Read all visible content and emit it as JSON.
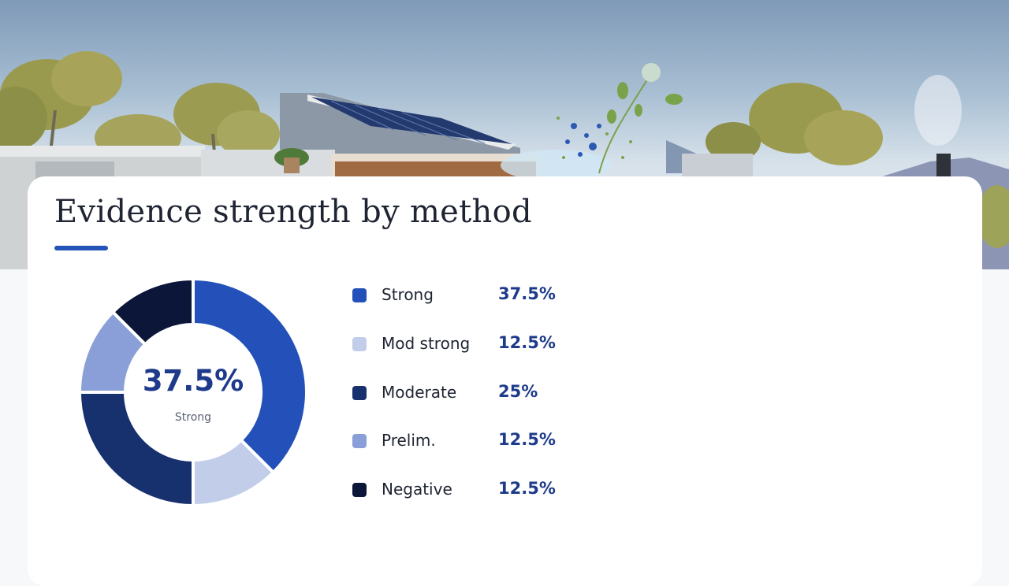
{
  "title": "Evidence strength by method",
  "colors": {
    "accent": "#2554b8",
    "value_text": "#1e3a8a"
  },
  "center": {
    "value": "37.5%",
    "label": "Strong"
  },
  "chart_data": {
    "type": "pie",
    "title": "Evidence strength by method",
    "donut": true,
    "categories": [
      "Strong",
      "Mod strong",
      "Moderate",
      "Prelim.",
      "Negative"
    ],
    "values": [
      37.5,
      12.5,
      25,
      12.5,
      12.5
    ],
    "value_labels": [
      "37.5%",
      "12.5%",
      "25%",
      "12.5%",
      "12.5%"
    ],
    "colors": [
      "#2350b9",
      "#c2cde9",
      "#17316e",
      "#8a9fd8",
      "#0c1638"
    ],
    "legend_position": "right",
    "start_angle_deg": 0,
    "direction": "clockwise"
  }
}
